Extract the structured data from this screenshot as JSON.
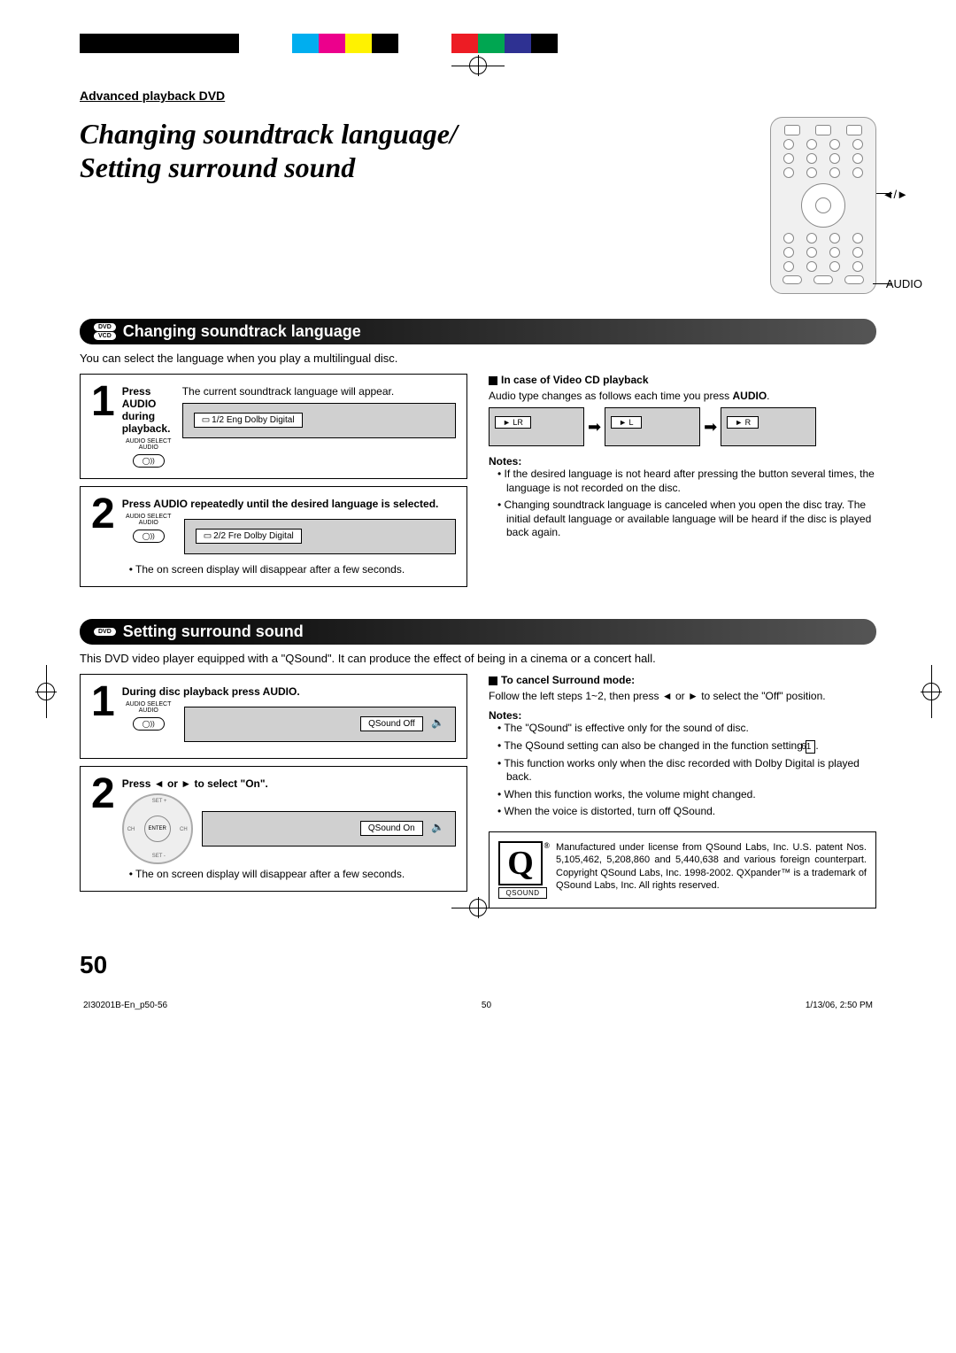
{
  "colorbar": [
    "#000",
    "#000",
    "#000",
    "#000",
    "#000",
    "#000",
    "#fff",
    "#fff",
    "#00aeef",
    "#ec008c",
    "#fff200",
    "#000",
    "#fff",
    "#fff",
    "#ed1c24",
    "#00a651",
    "#2e3192",
    "#000"
  ],
  "header": {
    "section": "Advanced playback DVD"
  },
  "title_line1": "Changing soundtrack language/",
  "title_line2": "Setting surround sound",
  "remote_labels": {
    "nav": "◄/►",
    "audio": "AUDIO"
  },
  "sec1": {
    "badge1": "DVD",
    "badge2": "VCD",
    "title": "Changing soundtrack language",
    "intro": "You can select the language when you play a multilingual disc.",
    "step1_title": "Press AUDIO during playback.",
    "step1_body": "The current soundtrack language will appear.",
    "btn_label_top": "AUDIO SELECT",
    "btn_label_bot": "AUDIO",
    "osd1": "1/2 Eng Dolby Digital",
    "step2_title": "Press AUDIO repeatedly until the desired language is selected.",
    "osd2": "2/2 Fre Dolby Digital",
    "step2_note": "The on screen display will disappear after a few seconds.",
    "vcd_title": "In case of Video CD playback",
    "vcd_body_a": "Audio type changes as follows each time you press ",
    "vcd_body_b": "AUDIO",
    "vcd_body_c": ".",
    "vcd_opts": [
      "► LR",
      "► L",
      "► R"
    ],
    "notes_title": "Notes:",
    "note1": "If the desired language is not heard after pressing the button several times, the language is not recorded on the disc.",
    "note2": "Changing soundtrack language is canceled when you open the disc tray. The initial default language or available language will be heard if the disc is played back again."
  },
  "sec2": {
    "badge": "DVD",
    "title": "Setting surround sound",
    "intro": "This DVD video player equipped with a \"QSound\". It can produce the effect of being in a cinema or a concert hall.",
    "step1_title": "During disc playback press AUDIO.",
    "osd1": "QSound Off",
    "step2_title": "Press ◄ or ► to select \"On\".",
    "osd2": "QSound On",
    "dpad_center": "ENTER",
    "step_note": "The on screen display will disappear after a few seconds.",
    "cancel_title": "To cancel Surround mode",
    "cancel_body": "Follow the left steps 1~2, then press ◄ or ► to select the \"Off\" position.",
    "notes_title": "Notes:",
    "n1": "The \"QSound\" is effective only for the sound of disc.",
    "n2a": "The QSound setting can also be changed in the function setting ",
    "n2b": "61",
    "n2c": ".",
    "n3": "This function works only when the disc recorded with Dolby Digital is played back.",
    "n4": "When this function works, the volume might changed.",
    "n5": "When the voice is distorted, turn off QSound.",
    "license": "Manufactured under license from QSound Labs, Inc. U.S. patent Nos. 5,105,462, 5,208,860 and 5,440,638 and various foreign counterpart. Copyright QSound Labs, Inc. 1998-2002. QXpander™ is a trademark of QSound Labs, Inc. All rights reserved.",
    "qsound_label": "QSOUND"
  },
  "page_number": "50",
  "footer_left": "2I30201B-En_p50-56",
  "footer_center": "50",
  "footer_right": "1/13/06, 2:50 PM"
}
